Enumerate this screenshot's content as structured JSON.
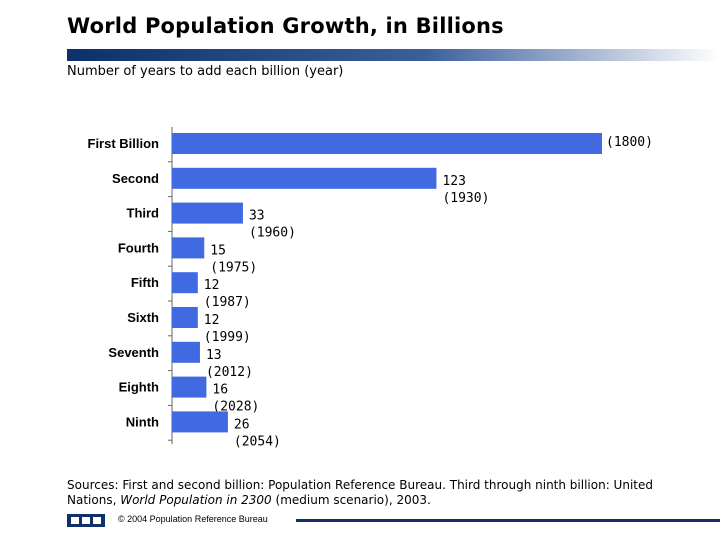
{
  "header": {
    "title": "World Population Growth, in Billions",
    "subtitle": "Number of years to add each billion (year)"
  },
  "colors": {
    "bar": "#4169e1",
    "title_rule": "#0d2f6b",
    "footer": "#10306a"
  },
  "chart_data": {
    "type": "bar",
    "orientation": "horizontal",
    "title": "",
    "xlabel": "",
    "ylabel": "",
    "grid": false,
    "xlim": [
      0,
      210
    ],
    "categories": [
      "First Billion",
      "Second",
      "Third",
      "Fourth",
      "Fifth",
      "Sixth",
      "Seventh",
      "Eighth",
      "Ninth"
    ],
    "values": [
      200,
      123,
      33,
      15,
      12,
      12,
      13,
      16,
      26
    ],
    "value_labels": [
      "",
      "123",
      "33",
      "15",
      "12",
      "12",
      "13",
      "16",
      "26"
    ],
    "year_labels": [
      "(1800)",
      "(1930)",
      "(1960)",
      "(1975)",
      "(1987)",
      "(1999)",
      "(2012)",
      "(2028)",
      "(2054)"
    ]
  },
  "sources": {
    "prefix": "Sources: First and second billion: Population Reference Bureau. Third through ninth billion: United Nations, ",
    "italic": "World Population in 2300",
    "suffix": " (medium scenario), 2003."
  },
  "footer": {
    "copyright": "© 2004 Population Reference Bureau"
  }
}
